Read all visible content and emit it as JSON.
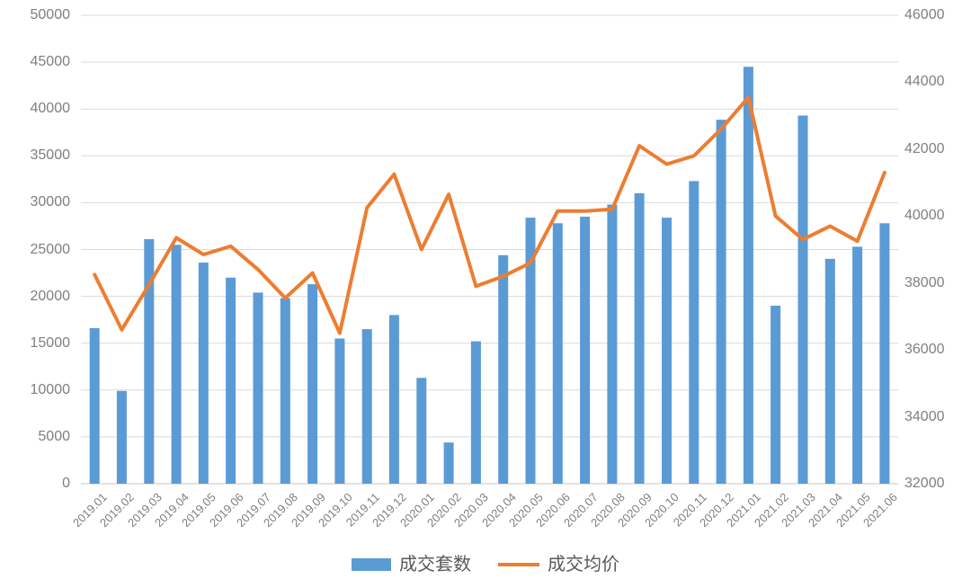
{
  "chart_data": {
    "type": "combo",
    "title": "",
    "categories": [
      "2019.01",
      "2019.02",
      "2019.03",
      "2019.04",
      "2019.05",
      "2019.06",
      "2019.07",
      "2019.08",
      "2019.09",
      "2019.10",
      "2019.11",
      "2019.12",
      "2020.01",
      "2020.02",
      "2020.03",
      "2020.04",
      "2020.05",
      "2020.06",
      "2020.07",
      "2020.08",
      "2020.09",
      "2020.10",
      "2020.11",
      "2020.12",
      "2021.01",
      "2021.02",
      "2021.03",
      "2021.04",
      "2021.05",
      "2021.06"
    ],
    "series": [
      {
        "name": "成交套数",
        "type": "bar",
        "axis": "left",
        "color": "#5B9BD5",
        "values": [
          16600,
          9900,
          26100,
          25500,
          23600,
          22000,
          20400,
          19800,
          21300,
          15500,
          16500,
          18000,
          11300,
          4400,
          15200,
          24400,
          28400,
          27800,
          28500,
          29800,
          31000,
          28400,
          32300,
          38850,
          44500,
          19000,
          39300,
          24000,
          25300,
          27800
        ]
      },
      {
        "name": "成交均价",
        "type": "line",
        "axis": "right",
        "color": "#ED7D31",
        "values": [
          38250,
          36600,
          37950,
          39350,
          38850,
          39100,
          38400,
          37550,
          38300,
          36500,
          40250,
          41250,
          39000,
          40650,
          37900,
          38200,
          38600,
          40150,
          40150,
          40200,
          42100,
          41550,
          41800,
          42600,
          43550,
          40000,
          39300,
          39700,
          39250,
          41300
        ]
      }
    ],
    "left_axis": {
      "min": 0,
      "max": 50000,
      "step": 5000,
      "ticks": [
        "0",
        "5000",
        "10000",
        "15000",
        "20000",
        "25000",
        "30000",
        "35000",
        "40000",
        "45000",
        "50000"
      ]
    },
    "right_axis": {
      "min": 32000,
      "max": 46000,
      "step": 2000,
      "ticks": [
        "32000",
        "34000",
        "36000",
        "38000",
        "40000",
        "42000",
        "44000",
        "46000"
      ]
    },
    "grid": "horizontal-only",
    "legend_position": "bottom",
    "colors": {
      "background": "#FFFFFF",
      "gridline": "#D9D9D9",
      "axis_text": "#7F7F7F",
      "legend_text": "#595959"
    }
  }
}
